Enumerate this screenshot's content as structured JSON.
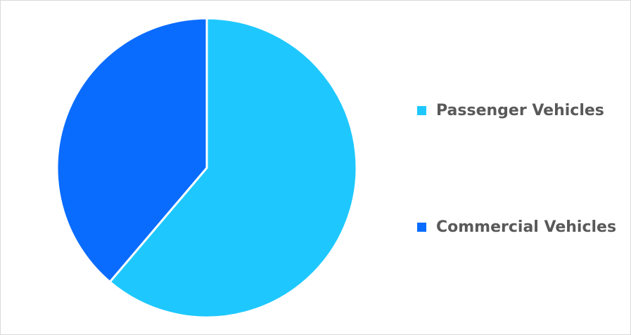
{
  "chart_data": {
    "type": "pie",
    "title": "",
    "categories": [
      "Passenger Vehicles",
      "Commercial Vehicles"
    ],
    "values": [
      61.2,
      38.8
    ],
    "colors": [
      "#1EC8FF",
      "#0A6CFF"
    ],
    "start_angle": "12 o'clock",
    "direction": "clockwise",
    "legend_position": "right"
  }
}
